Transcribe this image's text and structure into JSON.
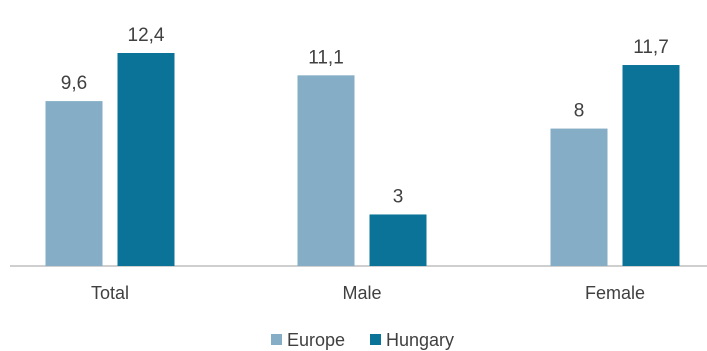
{
  "chart_data": {
    "type": "bar",
    "categories": [
      "Total",
      "Male",
      "Female"
    ],
    "series": [
      {
        "name": "Europe",
        "values": [
          9.6,
          11.1,
          8
        ],
        "labels": [
          "9,6",
          "11,1",
          "8"
        ]
      },
      {
        "name": "Hungary",
        "values": [
          12.4,
          3,
          11.7
        ],
        "labels": [
          "12,4",
          "3",
          "11,7"
        ]
      }
    ],
    "colors": {
      "Europe": "#85AEC6",
      "Hungary": "#0B7298",
      "axis": "#BFBFBF"
    },
    "title": "",
    "xlabel": "",
    "ylabel": "",
    "ylim": [
      0,
      12.4
    ],
    "grid": false,
    "legend": "bottom-center"
  }
}
